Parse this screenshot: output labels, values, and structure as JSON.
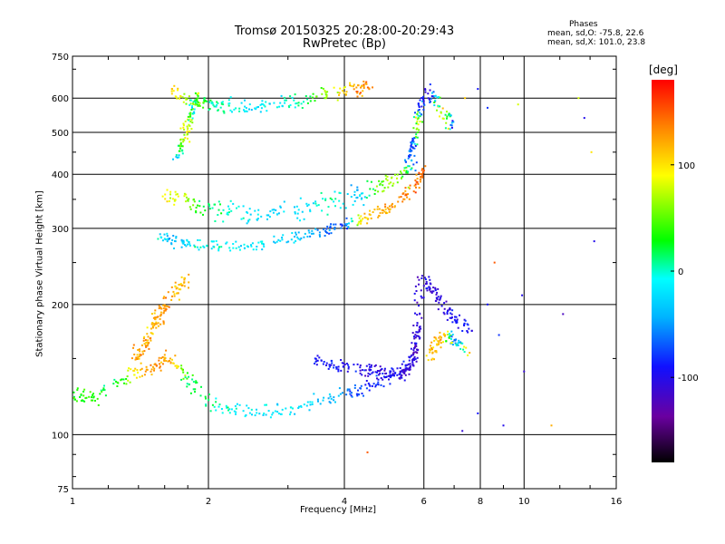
{
  "titles": {
    "line1": "Tromsø 20150325 20:28:00-20:29:43",
    "line2": "RwPretec (Bp)"
  },
  "phases": {
    "title": "Phases",
    "line_o": "mean, sd,O: -75.8, 22.6",
    "line_x": "mean, sd,X: 101.0, 23.8"
  },
  "colorbar": {
    "unit": "[deg]",
    "ticks": [
      "100",
      "0",
      "-100"
    ],
    "tick_values": [
      100,
      0,
      -100
    ],
    "range": [
      -180,
      180
    ],
    "colors": [
      "#000000",
      "#6a00a0",
      "#1010ff",
      "#00b4ff",
      "#00ffff",
      "#00ff00",
      "#ffff00",
      "#ff8000",
      "#ff0000"
    ]
  },
  "chart_data": {
    "type": "scatter",
    "title": "Tromsø 20150325 20:28:00-20:29:43",
    "subtitle": "RwPretec (Bp)",
    "xlabel": "Frequency [MHz]",
    "ylabel": "Stationary phase Virtual Height [km]",
    "x_scale": "log",
    "y_scale": "log",
    "xlim": [
      1,
      16
    ],
    "ylim": [
      75,
      750
    ],
    "x_ticks": [
      1,
      2,
      4,
      6,
      8,
      10,
      16
    ],
    "x_tick_labels": [
      "1",
      "2",
      "4",
      "6",
      "8",
      "10",
      "16"
    ],
    "y_ticks": [
      75,
      100,
      200,
      300,
      400,
      500,
      600,
      750
    ],
    "y_tick_labels": [
      "75",
      "100",
      "200",
      "300",
      "400",
      "500",
      "600",
      "750"
    ],
    "grid": true,
    "color_variable": "phase [deg]",
    "traces": [
      {
        "x": [
          1.0,
          1.1,
          1.25,
          1.4,
          1.55,
          1.65,
          1.8,
          2.0,
          2.3,
          2.7,
          3.2,
          3.8,
          4.3,
          4.9,
          5.4,
          5.7,
          5.8,
          5.85
        ],
        "y": [
          125,
          120,
          132,
          140,
          146,
          150,
          135,
          118,
          114,
          113,
          116,
          121,
          126,
          134,
          140,
          150,
          175,
          230
        ],
        "phase": [
          40,
          35,
          20,
          110,
          130,
          125,
          25,
          15,
          -10,
          -15,
          -20,
          -40,
          -75,
          -90,
          -95,
          -100,
          -105,
          -110
        ],
        "spread": 0.05
      },
      {
        "x": [
          3.4,
          3.8,
          4.2,
          4.6,
          5.0,
          5.4,
          5.7,
          5.85
        ],
        "y": [
          148,
          145,
          142,
          140,
          138,
          138,
          148,
          180
        ],
        "phase": [
          -90,
          -95,
          -100,
          -100,
          -105,
          -105,
          -110,
          -110
        ],
        "spread": 0.05
      },
      {
        "x": [
          1.35,
          1.45,
          1.5,
          1.55,
          1.6,
          1.7,
          1.8
        ],
        "y": [
          150,
          160,
          175,
          185,
          200,
          215,
          230
        ],
        "phase": [
          115,
          125,
          110,
          125,
          130,
          115,
          120
        ],
        "spread": 0.06
      },
      {
        "x": [
          1.55,
          1.7,
          1.9,
          2.2,
          2.6,
          3.1,
          3.6,
          4.0,
          4.4,
          4.9,
          5.4,
          5.8,
          6.0
        ],
        "y": [
          285,
          280,
          275,
          272,
          275,
          285,
          295,
          305,
          315,
          330,
          350,
          380,
          420
        ],
        "phase": [
          -20,
          -40,
          -10,
          -5,
          -20,
          -30,
          -55,
          -80,
          110,
          115,
          130,
          140,
          145
        ],
        "spread": 0.04
      },
      {
        "x": [
          1.6,
          1.8,
          2.0,
          2.3,
          2.7,
          3.2,
          3.8,
          4.3,
          4.8,
          5.4,
          5.8
        ],
        "y": [
          360,
          345,
          335,
          325,
          320,
          330,
          345,
          360,
          375,
          395,
          430
        ],
        "phase": [
          100,
          60,
          20,
          -10,
          -20,
          -25,
          10,
          -40,
          60,
          70,
          -90
        ],
        "spread": 0.07
      },
      {
        "x": [
          1.65,
          1.8,
          2.0,
          2.2,
          2.5,
          2.9,
          3.3,
          3.8,
          4.3,
          4.6
        ],
        "y": [
          620,
          600,
          585,
          578,
          575,
          580,
          600,
          620,
          630,
          640
        ],
        "phase": [
          110,
          60,
          20,
          0,
          -20,
          -10,
          20,
          80,
          130,
          140
        ],
        "spread": 0.05
      },
      {
        "x": [
          1.7,
          1.75,
          1.8,
          1.85,
          1.9
        ],
        "y": [
          430,
          480,
          530,
          570,
          600
        ],
        "phase": [
          -40,
          60,
          100,
          -20,
          80
        ],
        "spread": 0.06
      },
      {
        "x": [
          5.5,
          5.7,
          5.8,
          5.9,
          6.2,
          6.6,
          7.0
        ],
        "y": [
          430,
          470,
          520,
          580,
          620,
          560,
          520
        ],
        "phase": [
          -60,
          -80,
          100,
          -90,
          -100,
          120,
          -95
        ],
        "spread": 0.06
      },
      {
        "x": [
          6.1,
          6.4,
          6.7,
          7.0,
          7.5
        ],
        "y": [
          150,
          160,
          170,
          165,
          155
        ],
        "phase": [
          110,
          115,
          120,
          -90,
          120
        ],
        "spread": 0.05
      },
      {
        "x": [
          6.0,
          6.3,
          6.6,
          7.0,
          7.7
        ],
        "y": [
          230,
          215,
          200,
          185,
          175
        ],
        "phase": [
          -100,
          -110,
          -105,
          -95,
          -90
        ],
        "spread": 0.05
      }
    ],
    "sparse_points": [
      [
        6.8,
        510,
        100
      ],
      [
        7.4,
        600,
        110
      ],
      [
        7.9,
        630,
        -90
      ],
      [
        8.3,
        570,
        -80
      ],
      [
        9.7,
        580,
        80
      ],
      [
        13.6,
        540,
        -100
      ],
      [
        14.1,
        450,
        100
      ],
      [
        14.3,
        280,
        -100
      ],
      [
        12.2,
        190,
        -120
      ],
      [
        11.5,
        105,
        120
      ],
      [
        10.0,
        140,
        -110
      ],
      [
        8.8,
        170,
        -80
      ],
      [
        8.3,
        200,
        -90
      ],
      [
        9.0,
        105,
        -100
      ],
      [
        7.9,
        112,
        -90
      ],
      [
        7.3,
        102,
        -110
      ],
      [
        4.5,
        91,
        150
      ],
      [
        8.6,
        250,
        150
      ],
      [
        9.9,
        210,
        -100
      ],
      [
        13.2,
        600,
        80
      ]
    ]
  }
}
